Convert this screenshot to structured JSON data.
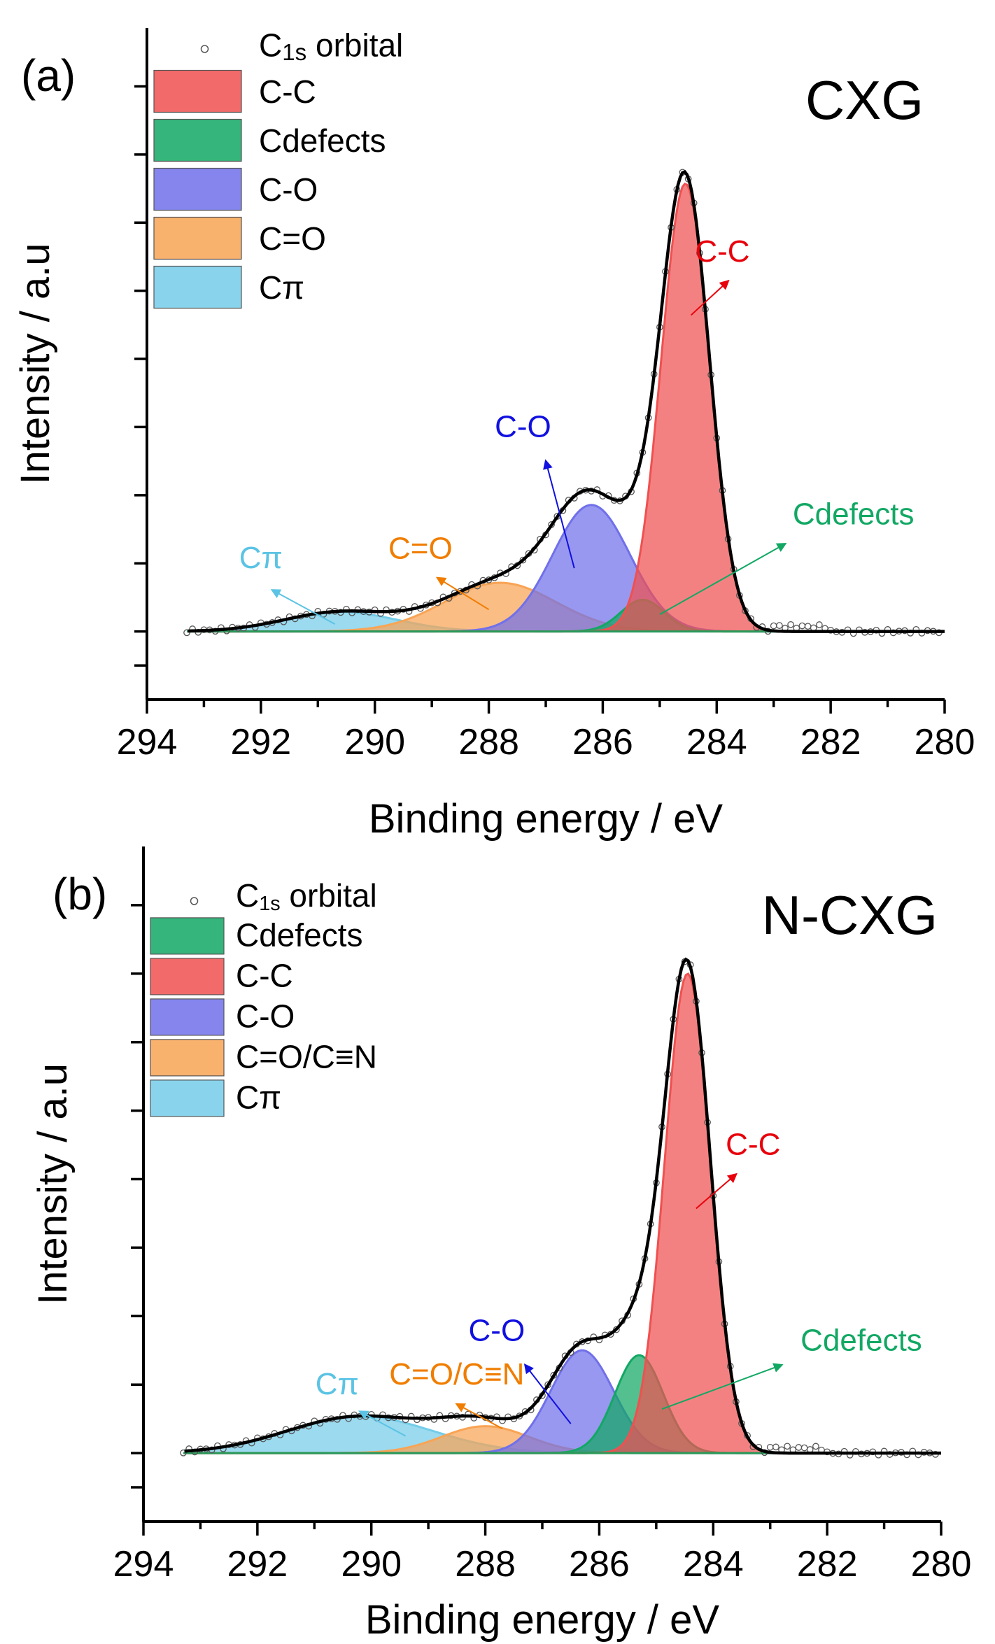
{
  "chart_data": [
    {
      "type": "line",
      "panel_label": "(a)",
      "sample": "CXG",
      "xlabel": "Binding energy / eV",
      "ylabel": "Intensity / a.u",
      "xlim": [
        294,
        280
      ],
      "ylim": [
        -0.14,
        1.24
      ],
      "x_ticks": [
        294,
        292,
        290,
        288,
        286,
        284,
        282,
        280
      ],
      "x_tick_labels": [
        "294",
        "292",
        "290",
        "288",
        "286",
        "284",
        "282",
        "280"
      ],
      "y_ticks": [
        -0.07,
        0,
        0.14,
        0.28,
        0.42,
        0.56,
        0.7,
        0.84,
        0.98,
        1.12
      ],
      "y_tick_labels": [],
      "legend": {
        "placement": "top-left",
        "marker_label": "C",
        "marker_sub": "1s",
        "marker_suffix": " orbital",
        "entries": [
          "C-C",
          "Cdefects",
          "C-O",
          "C=O",
          "Cπ"
        ]
      },
      "peaks": [
        {
          "name": "Cπ",
          "center": 290.6,
          "height": 0.04,
          "fwhm": 2.3,
          "color": "#74cce9"
        },
        {
          "name": "C=O",
          "center": 287.8,
          "height": 0.1,
          "fwhm": 2.3,
          "color": "#f8a455"
        },
        {
          "name": "C-O",
          "center": 286.2,
          "height": 0.26,
          "fwhm": 1.6,
          "color": "#7070ea"
        },
        {
          "name": "Cdefects",
          "center": 285.3,
          "height": 0.065,
          "fwhm": 0.9,
          "color": "#12a864"
        },
        {
          "name": "C-C",
          "center": 284.55,
          "height": 0.92,
          "fwhm": 1.0,
          "color": "#f05050"
        }
      ],
      "annotations": [
        {
          "text": "C-C",
          "color": "#e8000b",
          "tail": [
            284.45,
            0.65
          ],
          "head": [
            283.8,
            0.72
          ],
          "label_pos": [
            283.9,
            0.76
          ]
        },
        {
          "text": "C-O",
          "color": "#1010e0",
          "tail": [
            286.5,
            0.13
          ],
          "head": [
            287.0,
            0.35
          ],
          "label_pos": [
            287.4,
            0.4
          ]
        },
        {
          "text": "C=O",
          "color": "#f07d00",
          "tail": [
            288.0,
            0.045
          ],
          "head": [
            288.9,
            0.11
          ],
          "label_pos": [
            289.2,
            0.15
          ]
        },
        {
          "text": "Cπ",
          "color": "#5bc3e4",
          "tail": [
            290.7,
            0.015
          ],
          "head": [
            291.8,
            0.085
          ],
          "label_pos": [
            292.0,
            0.13
          ]
        },
        {
          "text": "Cdefects",
          "color": "#12a864",
          "tail": [
            285.0,
            0.035
          ],
          "head": [
            282.8,
            0.18
          ],
          "label_pos": [
            281.6,
            0.22
          ]
        }
      ]
    },
    {
      "type": "line",
      "panel_label": "(b)",
      "sample": "N-CXG",
      "xlabel": "Binding energy / eV",
      "ylabel": "Intensity / a.u",
      "xlim": [
        294,
        280
      ],
      "ylim": [
        -0.14,
        1.24
      ],
      "x_ticks": [
        294,
        292,
        290,
        288,
        286,
        284,
        282,
        280
      ],
      "x_tick_labels": [
        "294",
        "292",
        "290",
        "288",
        "286",
        "284",
        "282",
        "280"
      ],
      "y_ticks": [
        -0.07,
        0,
        0.14,
        0.28,
        0.42,
        0.56,
        0.7,
        0.84,
        0.98,
        1.12
      ],
      "y_tick_labels": [],
      "legend": {
        "placement": "top-left",
        "marker_label": "C",
        "marker_sub": "1s",
        "marker_suffix": " orbital",
        "entries": [
          "Cdefects",
          "C-C",
          "C-O",
          "C=O/C≡N",
          "Cπ"
        ]
      },
      "peaks": [
        {
          "name": "Cπ",
          "center": 290.2,
          "height": 0.075,
          "fwhm": 3.0,
          "color": "#74cce9"
        },
        {
          "name": "C=O/C≡N",
          "center": 288.0,
          "height": 0.055,
          "fwhm": 1.8,
          "color": "#f8a455"
        },
        {
          "name": "C-O",
          "center": 286.3,
          "height": 0.21,
          "fwhm": 1.3,
          "color": "#7070ea"
        },
        {
          "name": "Cdefects",
          "center": 285.3,
          "height": 0.2,
          "fwhm": 1.0,
          "color": "#12a864"
        },
        {
          "name": "C-C",
          "center": 284.45,
          "height": 0.98,
          "fwhm": 0.95,
          "color": "#f05050"
        }
      ],
      "annotations": [
        {
          "text": "C-C",
          "color": "#e8000b",
          "tail": [
            284.3,
            0.5
          ],
          "head": [
            283.6,
            0.57
          ],
          "label_pos": [
            283.3,
            0.61
          ]
        },
        {
          "text": "C-O",
          "color": "#1010e0",
          "tail": [
            286.5,
            0.06
          ],
          "head": [
            287.3,
            0.18
          ],
          "label_pos": [
            287.8,
            0.23
          ]
        },
        {
          "text": "C=O/C≡N",
          "color": "#f07d00",
          "tail": [
            287.7,
            0.05
          ],
          "head": [
            288.5,
            0.1
          ],
          "label_pos": [
            288.5,
            0.14
          ]
        },
        {
          "text": "Cπ",
          "color": "#5bc3e4",
          "tail": [
            289.4,
            0.035
          ],
          "head": [
            290.2,
            0.085
          ],
          "label_pos": [
            290.6,
            0.12
          ]
        },
        {
          "text": "Cdefects",
          "color": "#12a864",
          "tail": [
            284.9,
            0.09
          ],
          "head": [
            282.8,
            0.18
          ],
          "label_pos": [
            281.4,
            0.21
          ]
        }
      ]
    }
  ]
}
